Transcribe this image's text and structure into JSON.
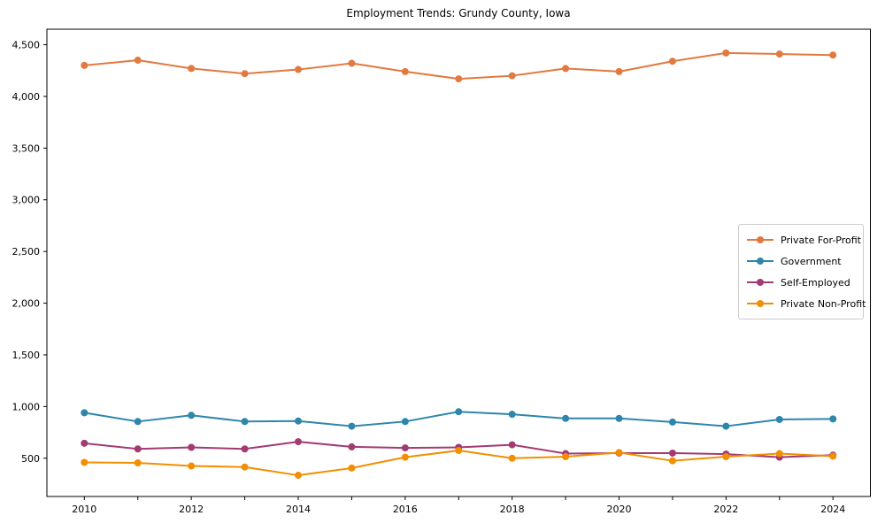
{
  "figure": {
    "title": "Employment Trends: Grundy County, Iowa"
  },
  "chart_data": {
    "type": "line",
    "title": "Employment Trends: Grundy County, Iowa",
    "xlabel": "",
    "ylabel": "",
    "grid": false,
    "legend_position": "center right",
    "xlim": [
      2009.3,
      2024.7
    ],
    "ylim": [
      130,
      4650
    ],
    "x": [
      2010,
      2011,
      2012,
      2013,
      2014,
      2015,
      2016,
      2017,
      2018,
      2019,
      2020,
      2021,
      2022,
      2023,
      2024
    ],
    "xticks_labeled": [
      2010,
      2012,
      2014,
      2016,
      2018,
      2020,
      2022,
      2024
    ],
    "xtick_labels": [
      "2010",
      "2012",
      "2014",
      "2016",
      "2018",
      "2020",
      "2022",
      "2024"
    ],
    "yticks": [
      500,
      1000,
      1500,
      2000,
      2500,
      3000,
      3500,
      4000,
      4500
    ],
    "ytick_labels": [
      "500",
      "1,000",
      "1,500",
      "2,000",
      "2,500",
      "3,000",
      "3,500",
      "4,000",
      "4,500"
    ],
    "series": [
      {
        "name": "Private For-Profit",
        "color": "#E2793F",
        "values": [
          4300,
          4350,
          4270,
          4220,
          4260,
          4320,
          4240,
          4170,
          4200,
          4270,
          4240,
          4340,
          4420,
          4410,
          4400
        ]
      },
      {
        "name": "Government",
        "color": "#2E86AB",
        "values": [
          940,
          855,
          915,
          855,
          860,
          810,
          855,
          950,
          925,
          885,
          885,
          850,
          810,
          875,
          880
        ]
      },
      {
        "name": "Self-Employed",
        "color": "#A23B72",
        "values": [
          645,
          590,
          605,
          590,
          660,
          610,
          600,
          605,
          630,
          545,
          550,
          550,
          540,
          510,
          530
        ]
      },
      {
        "name": "Private Non-Profit",
        "color": "#F18F01",
        "values": [
          460,
          455,
          425,
          415,
          335,
          405,
          510,
          575,
          500,
          515,
          555,
          475,
          515,
          545,
          520
        ]
      }
    ],
    "axis_color": "#000000",
    "tick_label_color": "#000000"
  }
}
